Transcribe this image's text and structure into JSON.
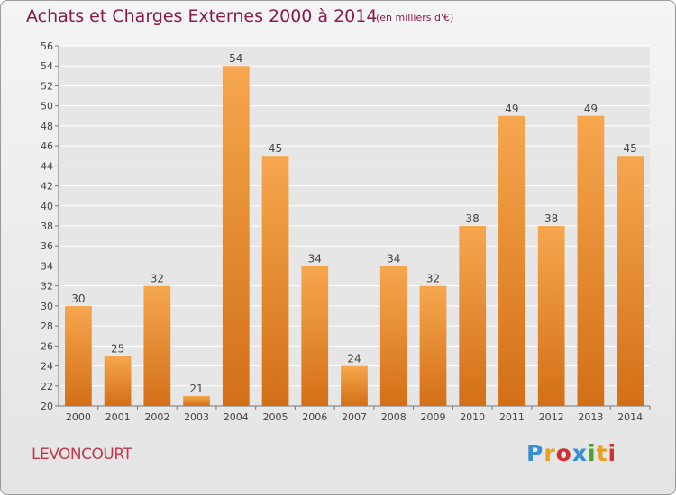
{
  "header": {
    "title": "Achats et Charges Externes 2000 à 2014",
    "unit": "(en milliers d'€)"
  },
  "commune": "LEVONCOURT",
  "logo": {
    "letters": [
      "P",
      "r",
      "o",
      "x",
      "i",
      "t",
      "i"
    ],
    "colors": [
      "#3a8fd0",
      "#e8a020",
      "#d03030",
      "#3a8fd0",
      "#50a030",
      "#e8a020",
      "#d03030"
    ]
  },
  "chart_data": {
    "type": "bar",
    "title": "Achats et Charges Externes 2000 à 2014",
    "subtitle": "(en milliers d'€)",
    "categories": [
      "2000",
      "2001",
      "2002",
      "2003",
      "2004",
      "2005",
      "2006",
      "2007",
      "2008",
      "2009",
      "2010",
      "2011",
      "2012",
      "2013",
      "2014"
    ],
    "values": [
      30,
      25,
      32,
      21,
      54,
      45,
      34,
      24,
      34,
      32,
      38,
      49,
      38,
      49,
      45
    ],
    "ylim": [
      20,
      56
    ],
    "ytick_step": 2,
    "grid": true,
    "bar_color_light": "#f6a74e",
    "bar_color_dark": "#d36f17"
  }
}
